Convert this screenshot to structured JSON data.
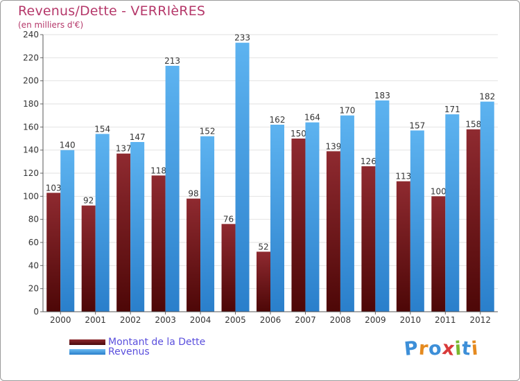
{
  "chart_data": {
    "type": "bar",
    "title": "Revenus/Dette - VERRIèRES",
    "subtitle": "(en milliers d'€)",
    "categories": [
      "2000",
      "2001",
      "2002",
      "2003",
      "2004",
      "2005",
      "2006",
      "2007",
      "2008",
      "2009",
      "2010",
      "2011",
      "2012"
    ],
    "series": [
      {
        "name": "Montant de la Dette",
        "values": [
          103,
          92,
          137,
          118,
          98,
          76,
          52,
          150,
          139,
          126,
          113,
          100,
          158
        ],
        "color": "#7a1a1e"
      },
      {
        "name": "Revenus",
        "values": [
          140,
          154,
          147,
          213,
          152,
          233,
          162,
          164,
          170,
          183,
          157,
          171,
          182
        ],
        "color": "#3d9ee6"
      }
    ],
    "ylim": [
      0,
      240
    ],
    "yticks": [
      0,
      20,
      40,
      60,
      80,
      100,
      120,
      140,
      160,
      180,
      200,
      220,
      240
    ],
    "grid": true,
    "legend_position": "bottom-left"
  },
  "logo": {
    "text": "Proxiti",
    "colors": [
      "#3d8fd8",
      "#e58a1f",
      "#3d8fd8",
      "#d93a3a",
      "#7ab82e",
      "#3d8fd8",
      "#e58a1f"
    ]
  }
}
